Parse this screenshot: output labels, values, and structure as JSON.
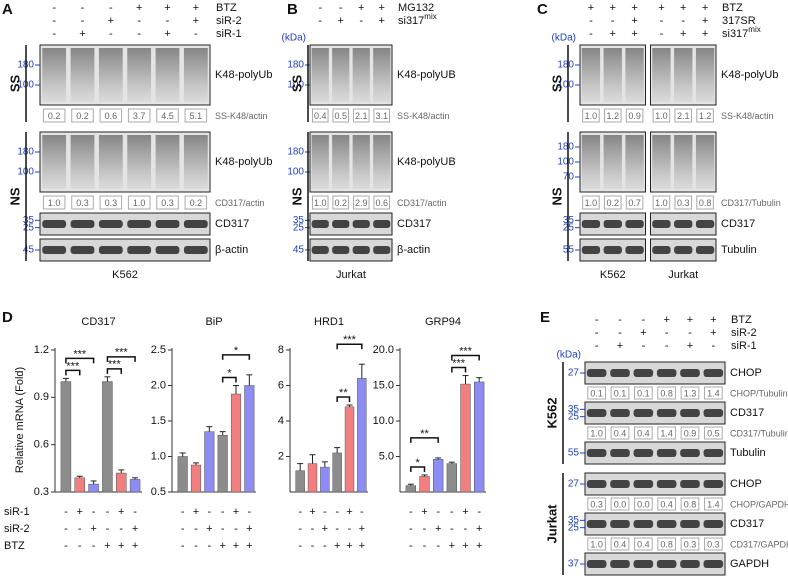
{
  "panels": [
    {
      "letter": "A",
      "conditions": [
        {
          "label": "BTZ",
          "signs": [
            "-",
            "-",
            "-",
            "+",
            "+",
            "+"
          ]
        },
        {
          "label": "siR-2",
          "signs": [
            "-",
            "-",
            "+",
            "-",
            "-",
            "+"
          ]
        },
        {
          "label": "siR-1",
          "signs": [
            "-",
            "+",
            "-",
            "-",
            "+",
            "-"
          ]
        }
      ],
      "sections": [
        {
          "label": "SS",
          "rows": [
            {
              "blot": "K48-polyUb",
              "markers": [
                180,
                100
              ]
            },
            {
              "quant": [
                "0.2",
                "0.2",
                "0.6",
                "3.7",
                "4.5",
                "5.1"
              ],
              "ratio": "SS-K48/actin"
            }
          ]
        },
        {
          "label": "NS",
          "rows": [
            {
              "blot": "K48-polyUb",
              "markers": [
                180,
                100
              ]
            },
            {
              "quant": [
                "1.0",
                "0.3",
                "0.3",
                "1.0",
                "0.3",
                "0.2"
              ],
              "ratio": "CD317/actin"
            },
            {
              "blot": "CD317",
              "markers": [
                35,
                25
              ]
            },
            {
              "blot": "β-actin",
              "markers": [
                45
              ]
            }
          ]
        }
      ],
      "groups": [
        "K562"
      ]
    },
    {
      "letter": "B",
      "kda": "(kDa)",
      "conditions": [
        {
          "label": "MG132",
          "signs": [
            "-",
            "-",
            "+",
            "+"
          ]
        },
        {
          "label": "si317",
          "sup": "mix",
          "signs": [
            "-",
            "+",
            "-",
            "+"
          ]
        }
      ],
      "sections": [
        {
          "label": "SS",
          "rows": [
            {
              "blot": "K48-polyUB",
              "markers": [
                180,
                100
              ]
            },
            {
              "quant": [
                "0.4",
                "0.5",
                "2.1",
                "3.1"
              ],
              "ratio": "SS-K48/actin"
            }
          ]
        },
        {
          "label": "NS",
          "rows": [
            {
              "blot": "K48-polyUB",
              "markers": [
                180,
                100
              ]
            },
            {
              "quant": [
                "1.0",
                "0.2",
                "2.9",
                "0.6"
              ],
              "ratio": "CD317/actin"
            },
            {
              "blot": "CD317",
              "markers": [
                35,
                25
              ]
            },
            {
              "blot": "β-actin",
              "markers": [
                45
              ]
            }
          ]
        }
      ],
      "groups": [
        "Jurkat"
      ]
    },
    {
      "letter": "C",
      "kda": "(kDa)",
      "conditions": [
        {
          "label": "BTZ",
          "signs": [
            "+",
            "+",
            "+",
            "+",
            "+",
            "+"
          ]
        },
        {
          "label": "317SR",
          "signs": [
            "-",
            "-",
            "+",
            "-",
            "-",
            "+"
          ]
        },
        {
          "label": "si317",
          "sup": "mix",
          "signs": [
            "-",
            "+",
            "+",
            "-",
            "+",
            "+"
          ]
        }
      ],
      "sections": [
        {
          "label": "SS",
          "rows": [
            {
              "blot": "K48-polyUb",
              "markers": [
                180,
                100
              ]
            },
            {
              "quant": [
                "1.0",
                "1.2",
                "0.9",
                "1.0",
                "2.1",
                "1.2"
              ],
              "ratio": "SS-K48/actin"
            }
          ]
        },
        {
          "label": "NS",
          "rows": [
            {
              "markers": [
                180,
                100,
                70
              ]
            },
            {
              "quant": [
                "1.0",
                "0.2",
                "0.7",
                "1.0",
                "0.3",
                "0.8"
              ],
              "ratio": "CD317/Tubulin"
            },
            {
              "blot": "CD317",
              "markers": [
                35,
                25
              ]
            },
            {
              "blot": "Tubulin",
              "markers": [
                55
              ]
            }
          ]
        }
      ],
      "groups": [
        "K562",
        "Jurkat"
      ]
    },
    {
      "letter": "E",
      "kda": "(kDa)",
      "conditions": [
        {
          "label": "BTZ",
          "signs": [
            "-",
            "-",
            "-",
            "+",
            "+",
            "+"
          ]
        },
        {
          "label": "siR-2",
          "signs": [
            "-",
            "-",
            "+",
            "-",
            "-",
            "+"
          ]
        },
        {
          "label": "siR-1",
          "signs": [
            "-",
            "+",
            "-",
            "-",
            "+",
            "-"
          ]
        }
      ],
      "sections": [
        {
          "label": "K562",
          "rows": [
            {
              "blot": "CHOP",
              "markers": [
                27
              ]
            },
            {
              "quant": [
                "0.1",
                "0.1",
                "0.1",
                "0.8",
                "1.3",
                "1.4"
              ],
              "ratio": "CHOP/Tubulin"
            },
            {
              "blot": "CD317",
              "markers": [
                35,
                25
              ]
            },
            {
              "quant": [
                "1.0",
                "0.4",
                "0.4",
                "1.4",
                "0.9",
                "0.5"
              ],
              "ratio": "CD317/Tubulin"
            },
            {
              "blot": "Tubulin",
              "markers": [
                55
              ]
            }
          ]
        },
        {
          "label": "Jurkat",
          "rows": [
            {
              "blot": "CHOP",
              "markers": [
                27
              ]
            },
            {
              "quant": [
                "0.3",
                "0.0",
                "0.0",
                "0.4",
                "0.8",
                "1.4"
              ],
              "ratio": "CHOP/GAPDH"
            },
            {
              "blot": "CD317",
              "markers": [
                35,
                25
              ]
            },
            {
              "quant": [
                "1.0",
                "0.4",
                "0.4",
                "0.8",
                "0.3",
                "0.3"
              ],
              "ratio": "CD317/GAPDH"
            },
            {
              "blot": "GAPDH",
              "markers": [
                37
              ]
            }
          ]
        }
      ]
    }
  ],
  "panel_d": {
    "letter": "D",
    "ylabel": "Relative mRNA (Fold)",
    "conditions": [
      {
        "label": "siR-1",
        "signs": [
          "-",
          "+",
          "-",
          "-",
          "+",
          "-"
        ]
      },
      {
        "label": "siR-2",
        "signs": [
          "-",
          "-",
          "+",
          "-",
          "-",
          "+"
        ]
      },
      {
        "label": "BTZ",
        "signs": [
          "-",
          "-",
          "-",
          "+",
          "+",
          "+"
        ]
      }
    ]
  },
  "chart_data": [
    {
      "type": "bar",
      "title": "CD317",
      "values": [
        1.0,
        0.39,
        0.35,
        1.0,
        0.42,
        0.38
      ],
      "errors": [
        0.02,
        0.01,
        0.02,
        0.03,
        0.02,
        0.01
      ],
      "colors": [
        "#8c8c8c",
        "#f27f7f",
        "#8c8cf2",
        "#8c8c8c",
        "#f27f7f",
        "#8c8cf2"
      ],
      "ylim": [
        0.3,
        1.2
      ],
      "yticks": [
        0.3,
        0.6,
        0.9,
        1.2
      ],
      "annotations": [
        {
          "text": "***",
          "bars": [
            0,
            1
          ]
        },
        {
          "text": "***",
          "bars": [
            0,
            2
          ]
        },
        {
          "text": "***",
          "bars": [
            3,
            4
          ]
        },
        {
          "text": "***",
          "bars": [
            3,
            5
          ]
        }
      ]
    },
    {
      "type": "bar",
      "title": "BiP",
      "values": [
        1.0,
        0.88,
        1.35,
        1.3,
        1.88,
        2.0
      ],
      "errors": [
        0.05,
        0.03,
        0.07,
        0.05,
        0.12,
        0.15
      ],
      "colors": [
        "#8c8c8c",
        "#f27f7f",
        "#8c8cf2",
        "#8c8c8c",
        "#f27f7f",
        "#8c8cf2"
      ],
      "ylim": [
        0.5,
        2.5
      ],
      "yticks": [
        0.5,
        {
          "value": 1,
          "label": "1.0"
        },
        1.5,
        {
          "value": 2,
          "label": "2.0"
        },
        2.5
      ],
      "annotations": [
        {
          "text": "*",
          "bars": [
            3,
            4
          ]
        },
        {
          "text": "*",
          "bars": [
            3,
            5
          ]
        }
      ]
    },
    {
      "type": "bar",
      "title": "HRD1",
      "values": [
        1.2,
        1.6,
        1.4,
        2.2,
        4.8,
        6.4
      ],
      "errors": [
        0.4,
        0.5,
        0.3,
        0.3,
        0.1,
        0.8
      ],
      "colors": [
        "#8c8c8c",
        "#f27f7f",
        "#8c8cf2",
        "#8c8c8c",
        "#f27f7f",
        "#8c8cf2"
      ],
      "ylim": [
        0,
        8
      ],
      "yticks": [
        2,
        4,
        6,
        8
      ],
      "annotations": [
        {
          "text": "**",
          "bars": [
            3,
            4
          ]
        },
        {
          "text": "***",
          "bars": [
            3,
            5
          ]
        }
      ]
    },
    {
      "type": "bar",
      "title": "GRP94",
      "values": [
        0.9,
        2.2,
        4.6,
        4.0,
        15.2,
        15.5
      ],
      "errors": [
        0.2,
        0.2,
        0.2,
        0.2,
        1.2,
        0.6
      ],
      "colors": [
        "#8c8c8c",
        "#f27f7f",
        "#8c8cf2",
        "#8c8c8c",
        "#f27f7f",
        "#8c8cf2"
      ],
      "ylim": [
        0,
        20
      ],
      "yticks": [
        {
          "value": 5,
          "label": "5.0"
        },
        {
          "value": 10,
          "label": "10.0"
        },
        {
          "value": 15,
          "label": "15.0"
        },
        {
          "value": 20,
          "label": "20.0"
        }
      ],
      "annotations": [
        {
          "text": "*",
          "bars": [
            0,
            1
          ]
        },
        {
          "text": "**",
          "bars": [
            0,
            2
          ]
        },
        {
          "text": "***",
          "bars": [
            3,
            4
          ]
        },
        {
          "text": "***",
          "bars": [
            3,
            5
          ]
        }
      ]
    }
  ]
}
